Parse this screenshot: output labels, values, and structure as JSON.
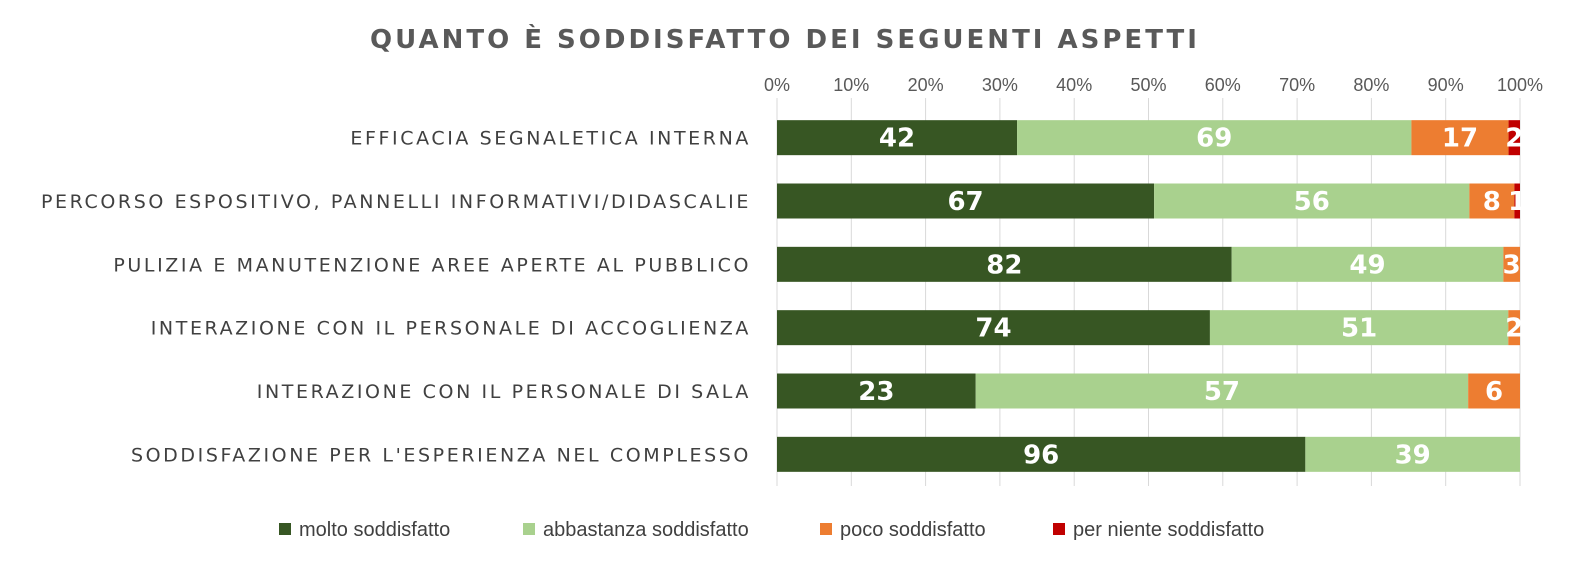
{
  "chart_data": {
    "type": "bar",
    "orientation": "horizontal",
    "stacked": "percent",
    "title": "QUANTO È SODDISFATTO DEI SEGUENTI ASPETTI",
    "categories": [
      "EFFICACIA SEGNALETICA INTERNA",
      "PERCORSO ESPOSITIVO, PANNELLI INFORMATIVI/DIDASCALIE",
      "PULIZIA E MANUTENZIONE AREE APERTE AL PUBBLICO",
      "INTERAZIONE CON IL PERSONALE DI ACCOGLIENZA",
      "INTERAZIONE CON IL PERSONALE DI SALA",
      "SODDISFAZIONE PER L'ESPERIENZA NEL COMPLESSO"
    ],
    "series": [
      {
        "name": "molto soddisfatto",
        "color": "#375623",
        "values": [
          42,
          67,
          82,
          74,
          23,
          96
        ]
      },
      {
        "name": "abbastanza soddisfatto",
        "color": "#a9d18e",
        "values": [
          69,
          56,
          49,
          51,
          57,
          39
        ]
      },
      {
        "name": "poco soddisfatto",
        "color": "#ed7d31",
        "values": [
          17,
          8,
          3,
          2,
          6,
          0
        ]
      },
      {
        "name": "per niente soddisfatto",
        "color": "#c00000",
        "values": [
          2,
          1,
          0,
          0,
          0,
          0
        ]
      }
    ],
    "x_ticks": [
      "0%",
      "10%",
      "20%",
      "30%",
      "40%",
      "50%",
      "60%",
      "70%",
      "80%",
      "90%",
      "100%"
    ],
    "xlim": [
      0,
      100
    ],
    "x_axis_position": "top",
    "grid": true,
    "legend_position": "bottom"
  }
}
